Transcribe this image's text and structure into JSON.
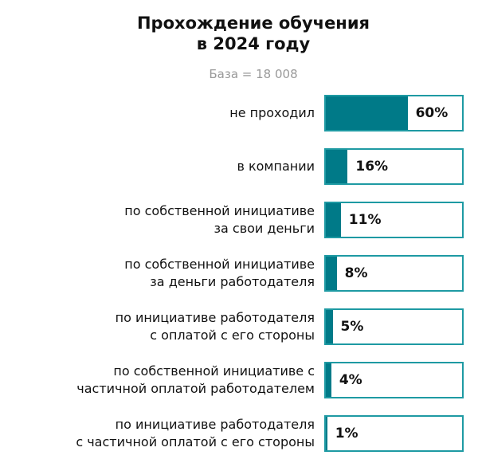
{
  "chart_data": {
    "type": "bar",
    "orientation": "horizontal",
    "title_lines": [
      "Прохождение обучения",
      "в 2024 году"
    ],
    "subtitle": "База = 18 008",
    "categories": [
      [
        "не проходил"
      ],
      [
        "в компании"
      ],
      [
        "по собственной инициативе",
        "за свои деньги"
      ],
      [
        "по собственной инициативе",
        "за деньги работодателя"
      ],
      [
        "по инициативе работодателя",
        "с оплатой с его стороны"
      ],
      [
        "по собственной инициативе с",
        "частичной оплатой работодателем"
      ],
      [
        "по инициативе работодателя",
        "с частичной оплатой с его стороны"
      ]
    ],
    "values": [
      60,
      16,
      11,
      8,
      5,
      4,
      1
    ],
    "value_labels": [
      "60%",
      "16%",
      "11%",
      "8%",
      "5%",
      "4%",
      "1%"
    ],
    "xlim": [
      0,
      100
    ],
    "colors": {
      "fill": "#007a88",
      "border": "#1e9aa3"
    }
  }
}
